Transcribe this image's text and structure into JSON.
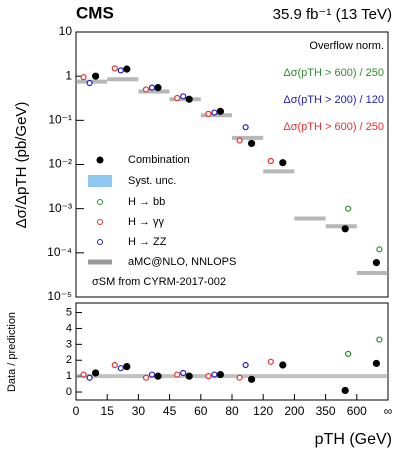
{
  "chart_data": {
    "type": "step",
    "title": "CMS",
    "subtitle": "35.9 fb⁻¹ (13 TeV)",
    "y_label": "Δσ/ΔpTH (pb/GeV)",
    "y2_label": "Data / prediction",
    "x_label": "pTH (GeV)",
    "annotations": [
      "Overflow norm.",
      "Δσ(pTH > 600) / 250",
      "Δσ(pTH > 200) / 120",
      "Δσ(pTH > 600) / 250",
      "σSM from CYRM-2017-002"
    ],
    "annotation_colors": [
      "#000000",
      "#2e8b2e",
      "#2020c0",
      "#e83030",
      "#000000"
    ],
    "bin_edges": [
      "0",
      "15",
      "30",
      "45",
      "60",
      "80",
      "120",
      "200",
      "350",
      "600",
      "∞"
    ],
    "log_y": true,
    "ylim": [
      1e-05,
      10
    ],
    "yticks": [
      {
        "value": 1e-05,
        "label": "10⁻⁵"
      },
      {
        "value": 0.0001,
        "label": "10⁻⁴"
      },
      {
        "value": 0.001,
        "label": "10⁻³"
      },
      {
        "value": 0.01,
        "label": "10⁻²"
      },
      {
        "value": 0.1,
        "label": "10⁻¹"
      },
      1,
      10
    ],
    "ratio_ylim": [
      -0.5,
      5.6
    ],
    "ratio_yticks": [
      0,
      1,
      2,
      3,
      4,
      5
    ],
    "prediction": {
      "name": "aMC@NLO, NNLOPS",
      "color": "#999999",
      "values": [
        0.75,
        0.85,
        0.45,
        0.3,
        0.13,
        0.04,
        0.007,
        0.0006,
        0.0004,
        3.5e-05
      ]
    },
    "band_name": "Syst. unc.",
    "band_color": "#8ec8f0",
    "series": [
      {
        "name": "Combination",
        "color": "#000000",
        "values": [
          1.0,
          1.45,
          0.55,
          0.3,
          0.16,
          0.03,
          0.011,
          null,
          0.00035,
          6e-05
        ],
        "ratio": [
          1.2,
          1.6,
          1.0,
          1.0,
          1.1,
          0.8,
          1.7,
          null,
          0.1,
          1.8
        ]
      },
      {
        "name": "H → bb",
        "color": "#2e8b2e",
        "values": [
          null,
          null,
          null,
          null,
          null,
          null,
          null,
          null,
          0.001,
          0.00012
        ],
        "ratio": [
          null,
          null,
          null,
          null,
          null,
          null,
          null,
          null,
          2.4,
          3.3
        ]
      },
      {
        "name": "H → γγ",
        "color": "#e83030",
        "values": [
          0.95,
          1.5,
          0.5,
          0.32,
          0.14,
          0.035,
          0.012,
          null,
          null,
          null
        ],
        "ratio": [
          1.1,
          1.7,
          0.9,
          1.1,
          1.0,
          0.9,
          1.9,
          null,
          null,
          null
        ]
      },
      {
        "name": "H → ZZ",
        "color": "#2020c0",
        "values": [
          0.7,
          1.35,
          0.55,
          0.35,
          0.15,
          0.07,
          null,
          null,
          null,
          null
        ],
        "ratio": [
          0.9,
          1.5,
          1.1,
          1.2,
          1.1,
          1.7,
          null,
          null,
          null,
          null
        ]
      }
    ]
  }
}
